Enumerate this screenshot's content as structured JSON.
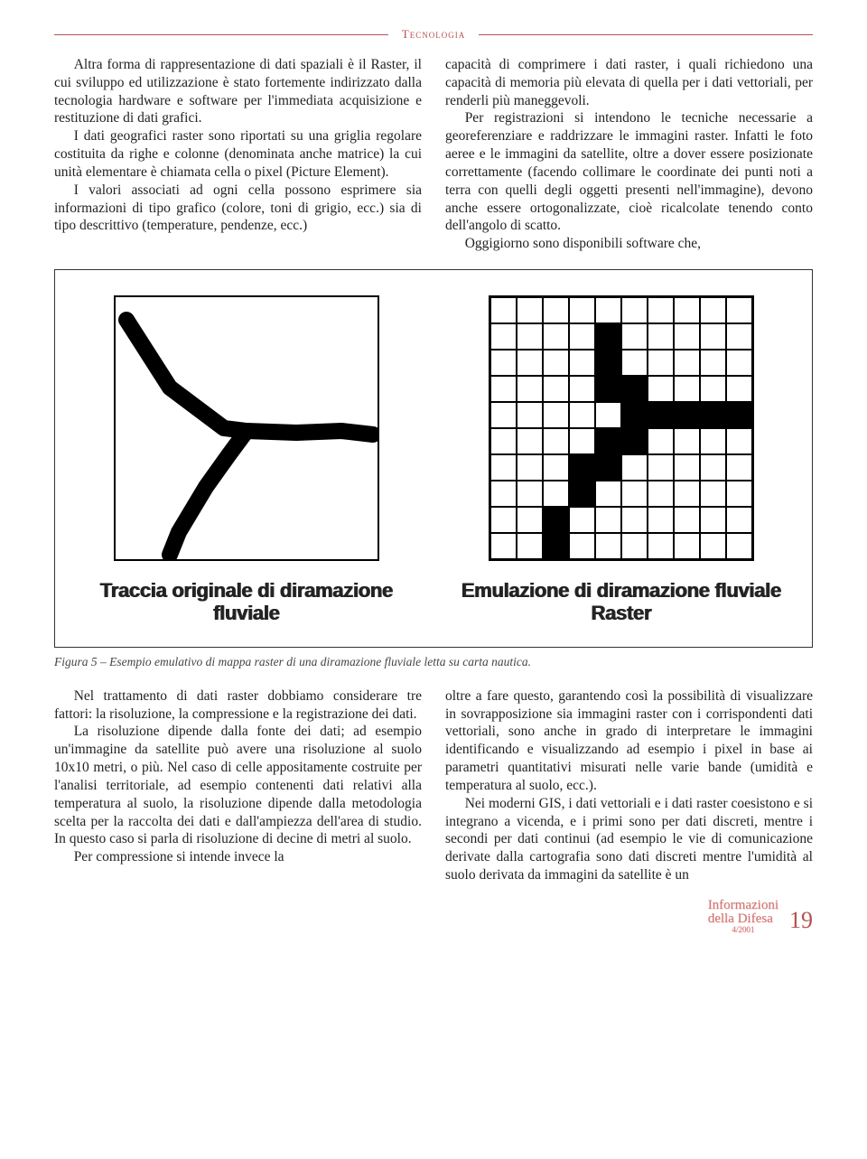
{
  "section": "Tecnologia",
  "body1_p1": "Altra forma di rappresentazione di dati spaziali è il Raster, il cui sviluppo ed utilizzazione è stato fortemente indirizzato dalla tecnologia hardware e software per l'immediata acquisizione e restituzione di dati grafici.",
  "body1_p2": "I dati geografici raster sono riportati su una griglia regolare costituita da righe e colonne (denominata anche matrice) la cui unità elementare è chiamata cella o pixel (Picture Element).",
  "body1_p3": "I valori associati ad ogni cella possono esprimere sia informazioni di tipo grafico (colore, toni di grigio, ecc.) sia di tipo descrittivo (temperature, pendenze, ecc.)",
  "body1_p4": "capacità di comprimere i dati raster, i quali richiedono una capacità di memoria più elevata di quella per i dati vettoriali, per renderli più maneggevoli.",
  "body1_p5": "Per registrazioni si intendono le tecniche necessarie a georeferenziare e raddrizzare le immagini raster. Infatti le foto aeree e le immagini da satellite, oltre a dover essere posizionate correttamente (facendo collimare le coordinate dei punti noti a terra con quelli degli oggetti presenti nell'immagine), devono anche essere ortogonalizzate, cioè ricalcolate tenendo conto dell'angolo di scatto.",
  "body1_p6": "Oggigiorno sono disponibili software che,",
  "figure": {
    "left_caption": "Traccia originale di diramazione fluviale",
    "right_caption": "Emulazione di diramazione fluviale Raster",
    "caption": "Figura 5 – Esempio emulativo di mappa raster di una diramazione fluviale letta su carta nautica.",
    "raster": {
      "rows": 10,
      "cols": 10,
      "filled": [
        [
          1,
          4
        ],
        [
          2,
          4
        ],
        [
          3,
          4
        ],
        [
          3,
          5
        ],
        [
          4,
          5
        ],
        [
          4,
          6
        ],
        [
          4,
          7
        ],
        [
          4,
          8
        ],
        [
          4,
          9
        ],
        [
          5,
          4
        ],
        [
          5,
          5
        ],
        [
          6,
          3
        ],
        [
          6,
          4
        ],
        [
          7,
          3
        ],
        [
          8,
          2
        ],
        [
          9,
          2
        ]
      ]
    },
    "vector_paths": [
      "M 12 25 L 60 100 L 120 145 L 145 148",
      "M 145 148 L 200 150 L 250 148 L 285 152",
      "M 145 148 L 125 175 L 100 210 L 70 260 L 60 285"
    ]
  },
  "body2_p1": "Nel trattamento di dati raster dobbiamo considerare tre fattori: la risoluzione, la compressione e la registrazione dei dati.",
  "body2_p2": "La risoluzione dipende dalla fonte dei dati; ad esempio un'immagine da satellite può avere una risoluzione al suolo 10x10 metri, o più. Nel caso di celle appositamente costruite per l'analisi territoriale, ad esempio contenenti dati relativi alla temperatura al suolo, la risoluzione dipende dalla metodologia scelta per la raccolta dei dati e dall'ampiezza dell'area di studio. In questo caso si parla di risoluzione di decine di metri al suolo.",
  "body2_p3": "Per compressione si intende invece la",
  "body2_p4": "oltre a fare questo, garantendo così la possibilità di visualizzare in sovrapposizione sia immagini raster con i corrispondenti dati vettoriali, sono anche in grado di interpretare le immagini identificando e visualizzando ad esempio i pixel in base ai parametri quantitativi misurati nelle varie bande (umidità e temperatura al suolo, ecc.).",
  "body2_p5": "Nei moderni GIS, i dati vettoriali e i dati raster coesistono e si integrano a vicenda, e i primi sono per dati discreti, mentre i secondi per dati continui (ad esempio le vie di comunicazione derivate dalla cartografia sono dati discreti mentre l'umidità al suolo derivata da immagini da satellite è un",
  "footer": {
    "logo_top": "Informazioni",
    "logo_bottom": "della Difesa",
    "issue": "4/2001",
    "page": "19"
  },
  "colors": {
    "accent": "#b55050",
    "text": "#222222",
    "border": "#333333"
  }
}
